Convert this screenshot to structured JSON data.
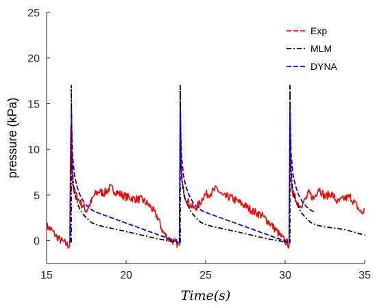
{
  "chart_data": {
    "type": "line",
    "xlabel": "Time(s)",
    "ylabel": "pressure (kPa)",
    "xlim": [
      15,
      35
    ],
    "ylim": [
      -2.5,
      25
    ],
    "x_ticks": [
      15,
      20,
      25,
      30,
      35
    ],
    "y_ticks": [
      0,
      5,
      10,
      15,
      20,
      25
    ],
    "grid": false,
    "legend_position": "top-right",
    "series": [
      {
        "name": "Exp",
        "color": "#ff0000",
        "style": "dashed",
        "noisy": true,
        "x": [
          15.0,
          15.3,
          15.6,
          15.9,
          16.2,
          16.45,
          16.52,
          16.55,
          16.58,
          16.62,
          16.7,
          16.85,
          17.0,
          17.2,
          17.5,
          17.8,
          18.0,
          18.3,
          18.6,
          19.0,
          19.5,
          20.0,
          20.5,
          21.0,
          21.5,
          22.0,
          22.3,
          22.6,
          22.9,
          23.2,
          23.35,
          23.4,
          23.45,
          23.5,
          23.6,
          23.8,
          24.0,
          24.3,
          24.6,
          24.9,
          25.3,
          25.7,
          26.1,
          26.5,
          27.0,
          27.5,
          28.0,
          28.5,
          29.0,
          29.4,
          29.8,
          30.1,
          30.25,
          30.3,
          30.35,
          30.4,
          30.5,
          30.7,
          30.9,
          31.2,
          31.5,
          31.8,
          32.1,
          32.5,
          32.9,
          33.3,
          33.7,
          34.1,
          34.5,
          34.8,
          35.0
        ],
        "y": [
          1.6,
          1.2,
          0.5,
          0.0,
          -0.3,
          -0.6,
          12.5,
          8.0,
          9.5,
          6.5,
          5.5,
          5.0,
          4.5,
          4.0,
          3.3,
          4.2,
          5.0,
          5.4,
          5.2,
          5.8,
          5.2,
          4.8,
          4.6,
          4.5,
          3.8,
          2.5,
          1.0,
          0.3,
          0.0,
          -0.3,
          -0.5,
          14.5,
          8.5,
          6.5,
          5.5,
          4.5,
          4.0,
          3.5,
          4.0,
          5.0,
          5.2,
          5.7,
          4.8,
          4.8,
          4.3,
          3.8,
          3.2,
          2.8,
          2.0,
          1.2,
          0.3,
          -0.2,
          -0.5,
          14.0,
          9.0,
          6.0,
          5.0,
          4.5,
          3.8,
          4.3,
          5.2,
          4.6,
          5.8,
          4.8,
          5.2,
          4.2,
          4.6,
          4.8,
          3.8,
          3.0,
          3.4
        ]
      },
      {
        "name": "MLM",
        "color": "#000000",
        "style": "dashdot",
        "x": [
          16.55,
          16.55,
          16.6,
          16.7,
          16.85,
          17.0,
          17.2,
          17.5,
          17.8,
          18.2,
          18.7,
          19.2,
          20.0,
          21.0,
          22.0,
          23.0,
          23.4,
          23.4,
          23.45,
          23.55,
          23.7,
          23.9,
          24.1,
          24.4,
          24.7,
          25.1,
          25.6,
          26.1,
          26.9,
          27.9,
          28.9,
          29.9,
          30.3,
          30.3,
          30.35,
          30.45,
          30.6,
          30.8,
          31.0,
          31.3,
          31.6,
          32.0,
          32.5,
          33.0,
          33.8,
          34.4,
          35.0
        ],
        "y": [
          -0.2,
          17.0,
          8.5,
          6.0,
          4.6,
          3.8,
          3.1,
          2.5,
          2.0,
          1.7,
          1.5,
          1.3,
          1.0,
          0.6,
          0.2,
          -0.1,
          -0.2,
          17.0,
          8.5,
          6.0,
          4.6,
          3.8,
          3.1,
          2.5,
          2.0,
          1.7,
          1.5,
          1.3,
          1.0,
          0.6,
          0.2,
          -0.1,
          -0.2,
          17.0,
          8.5,
          6.0,
          4.6,
          3.8,
          3.1,
          2.5,
          2.0,
          1.7,
          1.5,
          1.4,
          1.2,
          0.9,
          0.6
        ]
      },
      {
        "name": "DYNA",
        "color": "#0000ff",
        "style": "dashed",
        "x": [
          16.5,
          16.55,
          16.62,
          16.75,
          16.9,
          17.1,
          17.35,
          17.6,
          17.9,
          18.15,
          23.35,
          23.4,
          23.47,
          23.6,
          23.75,
          23.95,
          24.2,
          24.45,
          24.75,
          25.0,
          30.25,
          30.3,
          30.37,
          30.5,
          30.65,
          30.85,
          31.1,
          31.35,
          31.65,
          31.9
        ],
        "y": [
          -0.2,
          14.5,
          9.5,
          7.2,
          6.0,
          5.0,
          4.2,
          3.7,
          3.3,
          3.1,
          -0.2,
          14.5,
          9.5,
          7.2,
          6.0,
          5.0,
          4.2,
          3.7,
          3.3,
          3.1,
          -0.2,
          14.5,
          9.5,
          7.2,
          6.0,
          5.0,
          4.2,
          3.7,
          3.3,
          3.1
        ]
      }
    ]
  }
}
